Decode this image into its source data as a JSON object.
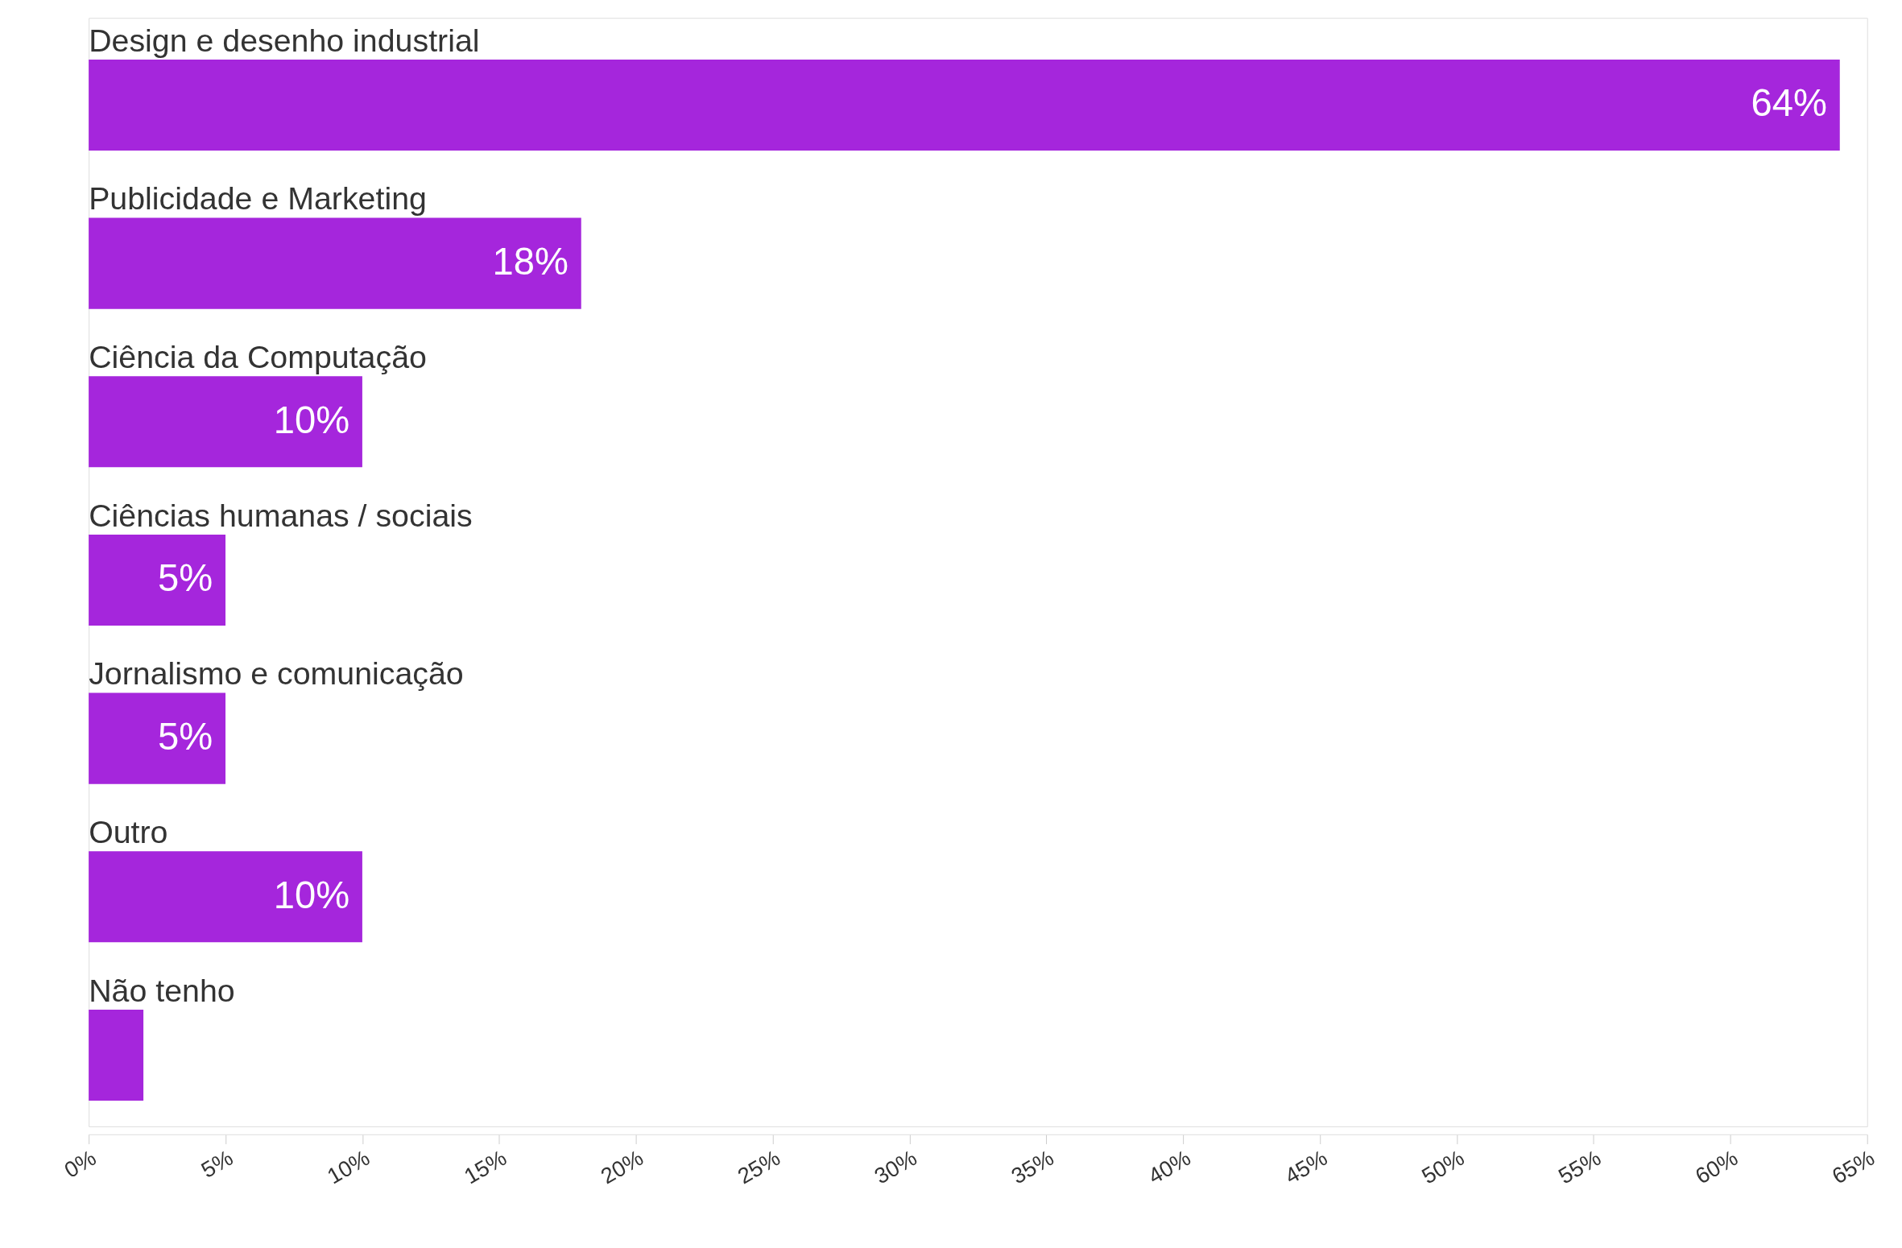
{
  "chart_data": {
    "type": "bar",
    "orientation": "horizontal",
    "categories": [
      "Design e desenho industrial",
      "Publicidade e Marketing",
      "Ciência da Computação",
      "Ciências humanas / sociais",
      "Jornalismo e comunicação",
      "Outro",
      "Não tenho"
    ],
    "values": [
      64,
      18,
      10,
      5,
      5,
      10,
      2
    ],
    "value_labels": [
      "64%",
      "18%",
      "10%",
      "5%",
      "5%",
      "10%",
      null
    ],
    "color": "#a526dc",
    "xlim": [
      0,
      65
    ],
    "xticks": [
      {
        "value": 0,
        "label": "0%"
      },
      {
        "value": 5,
        "label": "5%"
      },
      {
        "value": 10,
        "label": "10%"
      },
      {
        "value": 15,
        "label": "15%"
      },
      {
        "value": 20,
        "label": "20%"
      },
      {
        "value": 25,
        "label": "25%"
      },
      {
        "value": 30,
        "label": "30%"
      },
      {
        "value": 35,
        "label": "35%"
      },
      {
        "value": 40,
        "label": "40%"
      },
      {
        "value": 45,
        "label": "45%"
      },
      {
        "value": 50,
        "label": "50%"
      },
      {
        "value": 55,
        "label": "55%"
      },
      {
        "value": 60,
        "label": "60%"
      },
      {
        "value": 65,
        "label": "65%"
      }
    ],
    "grid": false
  }
}
